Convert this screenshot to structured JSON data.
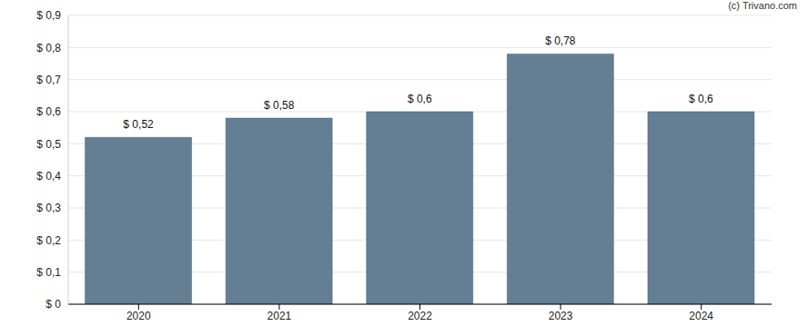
{
  "chart_data": {
    "type": "bar",
    "annotation": "(c) Trivano.com",
    "categories": [
      "2020",
      "2021",
      "2022",
      "2023",
      "2024"
    ],
    "values": [
      0.52,
      0.58,
      0.6,
      0.78,
      0.6
    ],
    "value_labels": [
      "$ 0,52",
      "$ 0,58",
      "$ 0,6",
      "$ 0,78",
      "$ 0,6"
    ],
    "data_labels": true,
    "color": "#647f94",
    "ylim": [
      0,
      0.9
    ],
    "yticks": [
      {
        "value": 0,
        "label": "$ 0"
      },
      {
        "value": 0.1,
        "label": "$ 0,1"
      },
      {
        "value": 0.2,
        "label": "$ 0,2"
      },
      {
        "value": 0.3,
        "label": "$ 0,3"
      },
      {
        "value": 0.4,
        "label": "$ 0,4"
      },
      {
        "value": 0.5,
        "label": "$ 0,5"
      },
      {
        "value": 0.6,
        "label": "$ 0,6"
      },
      {
        "value": 0.7,
        "label": "$ 0,7"
      },
      {
        "value": 0.8,
        "label": "$ 0,8"
      },
      {
        "value": 0.9,
        "label": "$ 0,9"
      }
    ],
    "grid": true
  }
}
